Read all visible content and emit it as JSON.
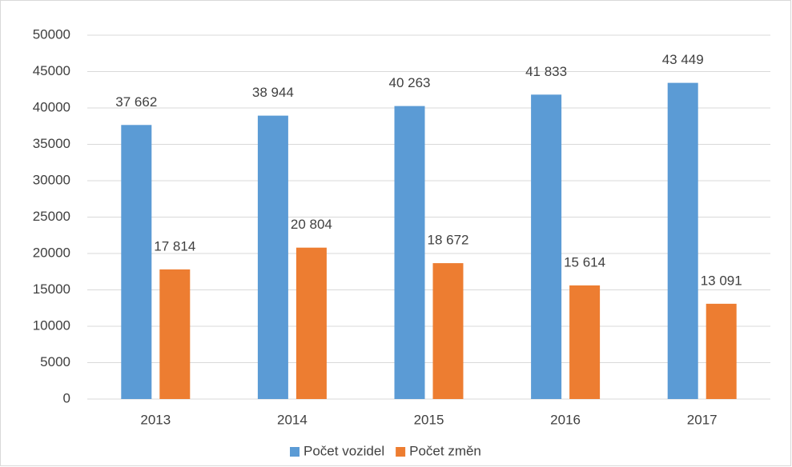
{
  "chart_data": {
    "type": "bar",
    "categories": [
      "2013",
      "2014",
      "2015",
      "2016",
      "2017"
    ],
    "series": [
      {
        "name": "Počet vozidel",
        "color": "#5b9bd5",
        "values": [
          37662,
          38944,
          40263,
          41833,
          43449
        ],
        "value_labels": [
          "37 662",
          "38 944",
          "40 263",
          "41 833",
          "43 449"
        ]
      },
      {
        "name": "Počet změn",
        "color": "#ed7d31",
        "values": [
          17814,
          20804,
          18672,
          15614,
          13091
        ],
        "value_labels": [
          "17 814",
          "20 804",
          "18 672",
          "15 614",
          "13 091"
        ]
      }
    ],
    "ylim": [
      0,
      50000
    ],
    "yticks": [
      0,
      5000,
      10000,
      15000,
      20000,
      25000,
      30000,
      35000,
      40000,
      45000,
      50000
    ],
    "grid": true,
    "legend": "bottom"
  }
}
